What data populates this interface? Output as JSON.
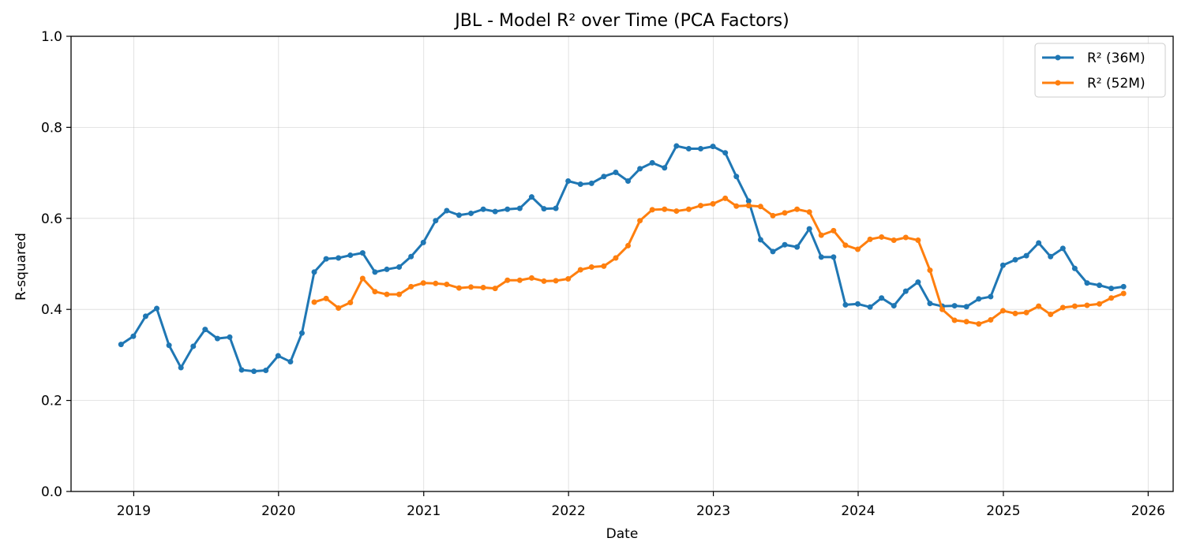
{
  "chart_data": {
    "type": "line",
    "title": "JBL - Model R² over Time (PCA Factors)",
    "xlabel": "Date",
    "ylabel": "R-squared",
    "xlim": [
      "2018-07-27",
      "2026-03-05"
    ],
    "ylim": [
      0,
      1
    ],
    "x_ticks": [
      "2019",
      "2020",
      "2021",
      "2022",
      "2023",
      "2024",
      "2025",
      "2026"
    ],
    "y_ticks": [
      "0.0",
      "0.2",
      "0.4",
      "0.6",
      "0.8",
      "1.0"
    ],
    "grid": true,
    "legend_position": "top-right",
    "series": [
      {
        "name": "R² (36M)",
        "color": "#1f77b4",
        "points": [
          [
            "2018-11-30",
            0.323
          ],
          [
            "2018-12-31",
            0.341
          ],
          [
            "2019-01-31",
            0.385
          ],
          [
            "2019-02-28",
            0.402
          ],
          [
            "2019-03-31",
            0.321
          ],
          [
            "2019-04-30",
            0.272
          ],
          [
            "2019-05-31",
            0.319
          ],
          [
            "2019-06-30",
            0.356
          ],
          [
            "2019-07-31",
            0.336
          ],
          [
            "2019-08-31",
            0.339
          ],
          [
            "2019-09-30",
            0.267
          ],
          [
            "2019-10-31",
            0.264
          ],
          [
            "2019-11-30",
            0.266
          ],
          [
            "2019-12-31",
            0.298
          ],
          [
            "2020-01-31",
            0.285
          ],
          [
            "2020-02-29",
            0.348
          ],
          [
            "2020-03-31",
            0.482
          ],
          [
            "2020-04-30",
            0.511
          ],
          [
            "2020-05-31",
            0.513
          ],
          [
            "2020-06-30",
            0.519
          ],
          [
            "2020-07-31",
            0.524
          ],
          [
            "2020-08-31",
            0.482
          ],
          [
            "2020-09-30",
            0.488
          ],
          [
            "2020-10-31",
            0.493
          ],
          [
            "2020-11-30",
            0.516
          ],
          [
            "2020-12-31",
            0.547
          ],
          [
            "2021-01-31",
            0.595
          ],
          [
            "2021-02-28",
            0.617
          ],
          [
            "2021-03-31",
            0.607
          ],
          [
            "2021-04-30",
            0.611
          ],
          [
            "2021-05-31",
            0.62
          ],
          [
            "2021-06-30",
            0.615
          ],
          [
            "2021-07-31",
            0.62
          ],
          [
            "2021-08-31",
            0.622
          ],
          [
            "2021-09-30",
            0.647
          ],
          [
            "2021-10-31",
            0.621
          ],
          [
            "2021-11-30",
            0.622
          ],
          [
            "2021-12-31",
            0.682
          ],
          [
            "2022-01-31",
            0.675
          ],
          [
            "2022-02-28",
            0.677
          ],
          [
            "2022-03-31",
            0.692
          ],
          [
            "2022-04-30",
            0.701
          ],
          [
            "2022-05-31",
            0.682
          ],
          [
            "2022-06-30",
            0.709
          ],
          [
            "2022-07-31",
            0.722
          ],
          [
            "2022-08-31",
            0.711
          ],
          [
            "2022-09-30",
            0.759
          ],
          [
            "2022-10-31",
            0.753
          ],
          [
            "2022-11-30",
            0.753
          ],
          [
            "2022-12-31",
            0.758
          ],
          [
            "2023-01-31",
            0.744
          ],
          [
            "2023-02-28",
            0.692
          ],
          [
            "2023-03-31",
            0.638
          ],
          [
            "2023-04-30",
            0.553
          ],
          [
            "2023-05-31",
            0.527
          ],
          [
            "2023-06-30",
            0.542
          ],
          [
            "2023-07-31",
            0.537
          ],
          [
            "2023-08-31",
            0.577
          ],
          [
            "2023-09-30",
            0.515
          ],
          [
            "2023-10-31",
            0.515
          ],
          [
            "2023-11-30",
            0.41
          ],
          [
            "2023-12-31",
            0.412
          ],
          [
            "2024-01-31",
            0.405
          ],
          [
            "2024-02-29",
            0.425
          ],
          [
            "2024-03-31",
            0.408
          ],
          [
            "2024-04-30",
            0.44
          ],
          [
            "2024-05-31",
            0.46
          ],
          [
            "2024-06-30",
            0.413
          ],
          [
            "2024-07-31",
            0.407
          ],
          [
            "2024-08-31",
            0.408
          ],
          [
            "2024-09-30",
            0.406
          ],
          [
            "2024-10-31",
            0.423
          ],
          [
            "2024-11-30",
            0.428
          ],
          [
            "2024-12-31",
            0.497
          ],
          [
            "2025-01-31",
            0.509
          ],
          [
            "2025-02-28",
            0.518
          ],
          [
            "2025-03-31",
            0.546
          ],
          [
            "2025-04-30",
            0.516
          ],
          [
            "2025-05-31",
            0.534
          ],
          [
            "2025-06-30",
            0.49
          ],
          [
            "2025-07-31",
            0.458
          ],
          [
            "2025-08-31",
            0.453
          ],
          [
            "2025-09-30",
            0.446
          ],
          [
            "2025-10-31",
            0.45
          ]
        ]
      },
      {
        "name": "R² (52M)",
        "color": "#ff7f0e",
        "points": [
          [
            "2020-03-31",
            0.416
          ],
          [
            "2020-04-30",
            0.424
          ],
          [
            "2020-05-31",
            0.403
          ],
          [
            "2020-06-30",
            0.415
          ],
          [
            "2020-07-31",
            0.468
          ],
          [
            "2020-08-31",
            0.439
          ],
          [
            "2020-09-30",
            0.433
          ],
          [
            "2020-10-31",
            0.433
          ],
          [
            "2020-11-30",
            0.45
          ],
          [
            "2020-12-31",
            0.458
          ],
          [
            "2021-01-31",
            0.457
          ],
          [
            "2021-02-28",
            0.455
          ],
          [
            "2021-03-31",
            0.447
          ],
          [
            "2021-04-30",
            0.449
          ],
          [
            "2021-05-31",
            0.448
          ],
          [
            "2021-06-30",
            0.446
          ],
          [
            "2021-07-31",
            0.464
          ],
          [
            "2021-08-31",
            0.464
          ],
          [
            "2021-09-30",
            0.469
          ],
          [
            "2021-10-31",
            0.462
          ],
          [
            "2021-11-30",
            0.463
          ],
          [
            "2021-12-31",
            0.467
          ],
          [
            "2022-01-31",
            0.487
          ],
          [
            "2022-02-28",
            0.493
          ],
          [
            "2022-03-31",
            0.495
          ],
          [
            "2022-04-30",
            0.513
          ],
          [
            "2022-05-31",
            0.54
          ],
          [
            "2022-06-30",
            0.595
          ],
          [
            "2022-07-31",
            0.619
          ],
          [
            "2022-08-31",
            0.62
          ],
          [
            "2022-09-30",
            0.616
          ],
          [
            "2022-10-31",
            0.62
          ],
          [
            "2022-11-30",
            0.628
          ],
          [
            "2022-12-31",
            0.632
          ],
          [
            "2023-01-31",
            0.644
          ],
          [
            "2023-02-28",
            0.627
          ],
          [
            "2023-03-31",
            0.628
          ],
          [
            "2023-04-30",
            0.626
          ],
          [
            "2023-05-31",
            0.606
          ],
          [
            "2023-06-30",
            0.612
          ],
          [
            "2023-07-31",
            0.62
          ],
          [
            "2023-08-31",
            0.614
          ],
          [
            "2023-09-30",
            0.563
          ],
          [
            "2023-10-31",
            0.573
          ],
          [
            "2023-11-30",
            0.541
          ],
          [
            "2023-12-31",
            0.532
          ],
          [
            "2024-01-31",
            0.554
          ],
          [
            "2024-02-29",
            0.559
          ],
          [
            "2024-03-31",
            0.552
          ],
          [
            "2024-04-30",
            0.558
          ],
          [
            "2024-05-31",
            0.552
          ],
          [
            "2024-06-30",
            0.486
          ],
          [
            "2024-07-31",
            0.4
          ],
          [
            "2024-08-31",
            0.376
          ],
          [
            "2024-09-30",
            0.373
          ],
          [
            "2024-10-31",
            0.368
          ],
          [
            "2024-11-30",
            0.377
          ],
          [
            "2024-12-31",
            0.397
          ],
          [
            "2025-01-31",
            0.391
          ],
          [
            "2025-02-28",
            0.393
          ],
          [
            "2025-03-31",
            0.407
          ],
          [
            "2025-04-30",
            0.389
          ],
          [
            "2025-05-31",
            0.404
          ],
          [
            "2025-06-30",
            0.407
          ],
          [
            "2025-07-31",
            0.409
          ],
          [
            "2025-08-31",
            0.412
          ],
          [
            "2025-09-30",
            0.425
          ],
          [
            "2025-10-31",
            0.435
          ]
        ]
      }
    ]
  }
}
